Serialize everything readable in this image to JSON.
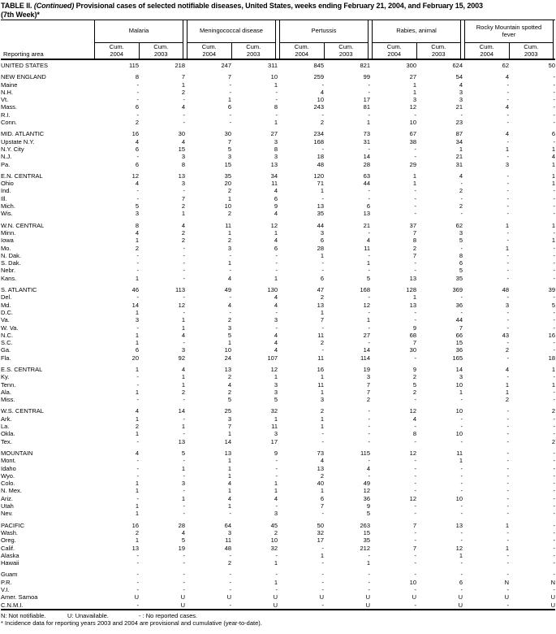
{
  "title": {
    "label": "TABLE II.",
    "continued": "(Continued)",
    "text": "Provisional cases of selected notifiable diseases, United States, weeks ending February 21, 2004, and February 15, 2003",
    "week": "(7th Week)*"
  },
  "header": {
    "reporting_area": "Reporting area",
    "groups": [
      "Malaria",
      "Meningococcal disease",
      "Pertussis",
      "Rabies, animal",
      "Rocky Mountain spotted fever"
    ],
    "subcol_label": "Cum.",
    "subcol_years": [
      "2004",
      "2003"
    ]
  },
  "sections": [
    {
      "rows": [
        {
          "area": "UNITED STATES",
          "values": [
            "115",
            "218",
            "247",
            "311",
            "845",
            "821",
            "300",
            "624",
            "62",
            "50"
          ]
        }
      ]
    },
    {
      "rows": [
        {
          "area": "NEW ENGLAND",
          "values": [
            "8",
            "7",
            "7",
            "10",
            "259",
            "99",
            "27",
            "54",
            "4",
            "-"
          ]
        },
        {
          "area": "Maine",
          "values": [
            "-",
            "1",
            "-",
            "1",
            "-",
            "-",
            "1",
            "4",
            "-",
            "-"
          ]
        },
        {
          "area": "N.H.",
          "values": [
            "-",
            "2",
            "-",
            "-",
            "4",
            "-",
            "1",
            "3",
            "-",
            "-"
          ]
        },
        {
          "area": "Vt.",
          "values": [
            "-",
            "-",
            "1",
            "-",
            "10",
            "17",
            "3",
            "3",
            "-",
            "-"
          ]
        },
        {
          "area": "Mass.",
          "values": [
            "6",
            "4",
            "6",
            "8",
            "243",
            "81",
            "12",
            "21",
            "4",
            "-"
          ]
        },
        {
          "area": "R.I.",
          "values": [
            "-",
            "-",
            "-",
            "-",
            "-",
            "-",
            "-",
            "-",
            "-",
            "-"
          ]
        },
        {
          "area": "Conn.",
          "values": [
            "2",
            "-",
            "-",
            "1",
            "2",
            "1",
            "10",
            "23",
            "-",
            "-"
          ]
        }
      ]
    },
    {
      "rows": [
        {
          "area": "MID. ATLANTIC",
          "values": [
            "16",
            "30",
            "30",
            "27",
            "234",
            "73",
            "67",
            "87",
            "4",
            "6"
          ]
        },
        {
          "area": "Upstate N.Y.",
          "values": [
            "4",
            "4",
            "7",
            "3",
            "168",
            "31",
            "38",
            "34",
            "-",
            "-"
          ]
        },
        {
          "area": "N.Y. City",
          "values": [
            "6",
            "15",
            "5",
            "8",
            "-",
            "-",
            "-",
            "1",
            "1",
            "1"
          ]
        },
        {
          "area": "N.J.",
          "values": [
            "-",
            "3",
            "3",
            "3",
            "18",
            "14",
            "-",
            "21",
            "-",
            "4"
          ]
        },
        {
          "area": "Pa.",
          "values": [
            "6",
            "8",
            "15",
            "13",
            "48",
            "28",
            "29",
            "31",
            "3",
            "1"
          ]
        }
      ]
    },
    {
      "rows": [
        {
          "area": "E.N. CENTRAL",
          "values": [
            "12",
            "13",
            "35",
            "34",
            "120",
            "63",
            "1",
            "4",
            "-",
            "1"
          ]
        },
        {
          "area": "Ohio",
          "values": [
            "4",
            "3",
            "20",
            "11",
            "71",
            "44",
            "1",
            "-",
            "-",
            "1"
          ]
        },
        {
          "area": "Ind.",
          "values": [
            "-",
            "-",
            "2",
            "4",
            "1",
            "-",
            "-",
            "2",
            "-",
            "-"
          ]
        },
        {
          "area": "Ill.",
          "values": [
            "-",
            "7",
            "1",
            "6",
            "-",
            "-",
            "-",
            "-",
            "-",
            "-"
          ]
        },
        {
          "area": "Mich.",
          "values": [
            "5",
            "2",
            "10",
            "9",
            "13",
            "6",
            "-",
            "2",
            "-",
            "-"
          ]
        },
        {
          "area": "Wis.",
          "values": [
            "3",
            "1",
            "2",
            "4",
            "35",
            "13",
            "-",
            "-",
            "-",
            "-"
          ]
        }
      ]
    },
    {
      "rows": [
        {
          "area": "W.N. CENTRAL",
          "values": [
            "8",
            "4",
            "11",
            "12",
            "44",
            "21",
            "37",
            "62",
            "1",
            "1"
          ]
        },
        {
          "area": "Minn.",
          "values": [
            "4",
            "2",
            "1",
            "1",
            "3",
            "-",
            "7",
            "3",
            "-",
            "-"
          ]
        },
        {
          "area": "Iowa",
          "values": [
            "1",
            "2",
            "2",
            "4",
            "6",
            "4",
            "8",
            "5",
            "-",
            "1"
          ]
        },
        {
          "area": "Mo.",
          "values": [
            "2",
            "-",
            "3",
            "6",
            "28",
            "11",
            "2",
            "-",
            "1",
            "-"
          ]
        },
        {
          "area": "N. Dak.",
          "values": [
            "-",
            "-",
            "-",
            "-",
            "1",
            "-",
            "7",
            "8",
            "-",
            "-"
          ]
        },
        {
          "area": "S. Dak.",
          "values": [
            "-",
            "-",
            "1",
            "-",
            "-",
            "1",
            "-",
            "6",
            "-",
            "-"
          ]
        },
        {
          "area": "Nebr.",
          "values": [
            "-",
            "-",
            "-",
            "-",
            "-",
            "-",
            "-",
            "5",
            "-",
            "-"
          ]
        },
        {
          "area": "Kans.",
          "values": [
            "1",
            "-",
            "4",
            "1",
            "6",
            "5",
            "13",
            "35",
            "-",
            "-"
          ]
        }
      ]
    },
    {
      "rows": [
        {
          "area": "S. ATLANTIC",
          "values": [
            "46",
            "113",
            "49",
            "130",
            "47",
            "168",
            "128",
            "369",
            "48",
            "39"
          ]
        },
        {
          "area": "Del.",
          "values": [
            "-",
            "-",
            "-",
            "4",
            "2",
            "-",
            "1",
            "-",
            "-",
            "-"
          ]
        },
        {
          "area": "Md.",
          "values": [
            "14",
            "12",
            "4",
            "4",
            "13",
            "12",
            "13",
            "36",
            "3",
            "5"
          ]
        },
        {
          "area": "D.C.",
          "values": [
            "1",
            "-",
            "-",
            "-",
            "1",
            "-",
            "-",
            "-",
            "-",
            "-"
          ]
        },
        {
          "area": "Va.",
          "values": [
            "3",
            "1",
            "2",
            "3",
            "7",
            "1",
            "-",
            "44",
            "-",
            "-"
          ]
        },
        {
          "area": "W. Va.",
          "values": [
            "-",
            "1",
            "3",
            "-",
            "-",
            "-",
            "9",
            "7",
            "-",
            "-"
          ]
        },
        {
          "area": "N.C.",
          "values": [
            "1",
            "4",
            "5",
            "4",
            "11",
            "27",
            "68",
            "66",
            "43",
            "16"
          ]
        },
        {
          "area": "S.C.",
          "values": [
            "1",
            "-",
            "1",
            "4",
            "2",
            "-",
            "7",
            "15",
            "-",
            "-"
          ]
        },
        {
          "area": "Ga.",
          "values": [
            "6",
            "3",
            "10",
            "4",
            "-",
            "14",
            "30",
            "36",
            "2",
            "-"
          ]
        },
        {
          "area": "Fla.",
          "values": [
            "20",
            "92",
            "24",
            "107",
            "11",
            "114",
            "-",
            "165",
            "-",
            "18"
          ]
        }
      ]
    },
    {
      "rows": [
        {
          "area": "E.S. CENTRAL",
          "values": [
            "1",
            "4",
            "13",
            "12",
            "16",
            "19",
            "9",
            "14",
            "4",
            "1"
          ]
        },
        {
          "area": "Ky.",
          "values": [
            "-",
            "1",
            "2",
            "1",
            "1",
            "3",
            "2",
            "3",
            "-",
            "-"
          ]
        },
        {
          "area": "Tenn.",
          "values": [
            "-",
            "1",
            "4",
            "3",
            "11",
            "7",
            "5",
            "10",
            "1",
            "1"
          ]
        },
        {
          "area": "Ala.",
          "values": [
            "1",
            "2",
            "2",
            "3",
            "1",
            "7",
            "2",
            "1",
            "1",
            "-"
          ]
        },
        {
          "area": "Miss.",
          "values": [
            "-",
            "-",
            "5",
            "5",
            "3",
            "2",
            "-",
            "-",
            "2",
            "-"
          ]
        }
      ]
    },
    {
      "rows": [
        {
          "area": "W.S. CENTRAL",
          "values": [
            "4",
            "14",
            "25",
            "32",
            "2",
            "-",
            "12",
            "10",
            "-",
            "2"
          ]
        },
        {
          "area": "Ark.",
          "values": [
            "1",
            "-",
            "3",
            "1",
            "1",
            "-",
            "4",
            "-",
            "-",
            "-"
          ]
        },
        {
          "area": "La.",
          "values": [
            "2",
            "1",
            "7",
            "11",
            "1",
            "-",
            "-",
            "-",
            "-",
            "-"
          ]
        },
        {
          "area": "Okla.",
          "values": [
            "1",
            "-",
            "1",
            "3",
            "-",
            "-",
            "8",
            "10",
            "-",
            "-"
          ]
        },
        {
          "area": "Tex.",
          "values": [
            "-",
            "13",
            "14",
            "17",
            "-",
            "-",
            "-",
            "-",
            "-",
            "2"
          ]
        }
      ]
    },
    {
      "rows": [
        {
          "area": "MOUNTAIN",
          "values": [
            "4",
            "5",
            "13",
            "9",
            "73",
            "115",
            "12",
            "11",
            "-",
            "-"
          ]
        },
        {
          "area": "Mont.",
          "values": [
            "-",
            "-",
            "1",
            "-",
            "4",
            "-",
            "-",
            "1",
            "-",
            "-"
          ]
        },
        {
          "area": "Idaho",
          "values": [
            "-",
            "1",
            "1",
            "-",
            "13",
            "4",
            "-",
            "-",
            "-",
            "-"
          ]
        },
        {
          "area": "Wyo.",
          "values": [
            "-",
            "-",
            "1",
            "-",
            "2",
            "-",
            "-",
            "-",
            "-",
            "-"
          ]
        },
        {
          "area": "Colo.",
          "values": [
            "1",
            "3",
            "4",
            "1",
            "40",
            "49",
            "-",
            "-",
            "-",
            "-"
          ]
        },
        {
          "area": "N. Mex.",
          "values": [
            "1",
            "-",
            "1",
            "1",
            "1",
            "12",
            "-",
            "-",
            "-",
            "-"
          ]
        },
        {
          "area": "Ariz.",
          "values": [
            "-",
            "1",
            "4",
            "4",
            "6",
            "36",
            "12",
            "10",
            "-",
            "-"
          ]
        },
        {
          "area": "Utah",
          "values": [
            "1",
            "-",
            "1",
            "-",
            "7",
            "9",
            "-",
            "-",
            "-",
            "-"
          ]
        },
        {
          "area": "Nev.",
          "values": [
            "1",
            "-",
            "-",
            "3",
            "-",
            "5",
            "-",
            "-",
            "-",
            "-"
          ]
        }
      ]
    },
    {
      "rows": [
        {
          "area": "PACIFIC",
          "values": [
            "16",
            "28",
            "64",
            "45",
            "50",
            "263",
            "7",
            "13",
            "1",
            "-"
          ]
        },
        {
          "area": "Wash.",
          "values": [
            "2",
            "4",
            "3",
            "2",
            "32",
            "15",
            "-",
            "-",
            "-",
            "-"
          ]
        },
        {
          "area": "Oreg.",
          "values": [
            "1",
            "5",
            "11",
            "10",
            "17",
            "35",
            "-",
            "-",
            "-",
            "-"
          ]
        },
        {
          "area": "Calif.",
          "values": [
            "13",
            "19",
            "48",
            "32",
            "-",
            "212",
            "7",
            "12",
            "1",
            "-"
          ]
        },
        {
          "area": "Alaska",
          "values": [
            "-",
            "-",
            "-",
            "-",
            "1",
            "-",
            "-",
            "1",
            "-",
            "-"
          ]
        },
        {
          "area": "Hawaii",
          "values": [
            "-",
            "-",
            "2",
            "1",
            "-",
            "1",
            "-",
            "-",
            "-",
            "-"
          ]
        }
      ]
    },
    {
      "rows": [
        {
          "area": "Guam",
          "values": [
            "-",
            "-",
            "-",
            "-",
            "-",
            "-",
            "-",
            "-",
            "-",
            "-"
          ]
        },
        {
          "area": "P.R.",
          "values": [
            "-",
            "-",
            "-",
            "1",
            "-",
            "-",
            "10",
            "6",
            "N",
            "N"
          ]
        },
        {
          "area": "V.I.",
          "values": [
            "-",
            "-",
            "-",
            "-",
            "-",
            "-",
            "-",
            "-",
            "-",
            "-"
          ]
        },
        {
          "area": "Amer. Samoa",
          "values": [
            "U",
            "U",
            "U",
            "U",
            "U",
            "U",
            "U",
            "U",
            "U",
            "U"
          ]
        },
        {
          "area": "C.N.M.I.",
          "values": [
            "-",
            "U",
            "-",
            "U",
            "-",
            "U",
            "-",
            "U",
            "-",
            "U"
          ]
        }
      ]
    }
  ],
  "footnotes": {
    "n": "N: Not notifiable.",
    "u": "U: Unavailable.",
    "dash": "- : No reported cases.",
    "asterisk": "* Incidence data for reporting years 2003 and 2004 are provisional and cumulative (year-to-date)."
  }
}
